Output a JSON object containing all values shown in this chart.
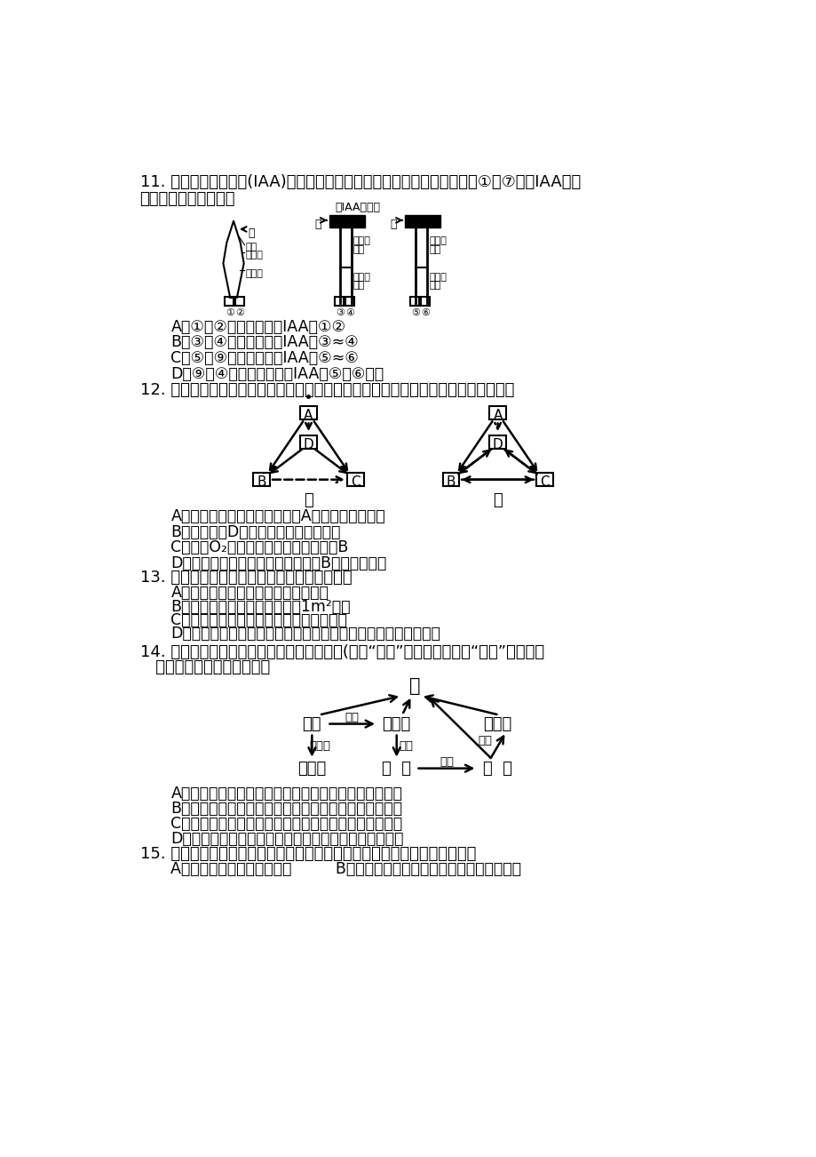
{
  "background_color": "#ffffff",
  "q11_text1": "11. 右图为研究生长素(IAA)产生部位及运输方向的实验，初始时，琦脂块①一⑦不含IAA，对",
  "q11_text2": "实验结果表述正确的是",
  "q11_A": "A．①、②琦脂块中都有IAA，①②",
  "q11_B": "B．③、④琦脂块中都有IAA，③≈④",
  "q11_C": "C．⑤、⑨琦脂块中都有IAA，⑤≈⑥",
  "q11_D": "D．⑨、④琦脂块中含有的IAA与⑤、⑥相等",
  "q12_text": "12. 甲、乙分别为人体体液中物质交换、生态系统碳循环的示意图，以下说法正确的是",
  "q12_A": "A．人体过敏反应时，甲图中的A增加导致组织水肿",
  "q12_B": "B．乙图中的D是生态系统中的主要成分",
  "q12_C": "C．人体O₂浓度最高的部位是甲图中的B",
  "q12_D": "D．食物链中能量最少的是乙图中的B所处的营养级",
  "q13_text": "13. 下列生物种群数量调查的方法中，正确的是",
  "q13_A": "A．调查蜗虫幼虫跳蜆，用标志重捕法",
  "q13_B": "B．调查马尾松，小样方划分为1m²左右",
  "q13_C": "C．调查蒲公英，只计数小样方内的个体数",
  "q13_D": "D．调查趋光性农业害虫，可用定位设置灯光诱捕，定时计数方法",
  "q14_text1": "14. 设计生态工程的常用方法之一是给食物链(网）“加环”，右图就是一种“加环”示意图，",
  "q14_text2": "   据图判断下列说法正确的是",
  "q14_A": "A．用残渣来培育食用菌和蛹蛹，提高了能量的传递效率",
  "q14_B": "B．用玉米的副产品玉米芯生产木糖醇，可增加经济效益",
  "q14_C": "C．用蛹蛹牧便作有机肥还田，运用了能量循环再生原理",
  "q14_D": "D．在离开人的管理条件下，该生态工程仍可以正常运转",
  "q15_text": "15. 某同学在制作腐乳的过程中，发现豆腿腐败变质，下列不属于其原因的是",
  "q15_A": "A．用盐腌制时，加盐量太少         B．用来腌制腐乳的玻璃瓶，没有用沩水消毒"
}
